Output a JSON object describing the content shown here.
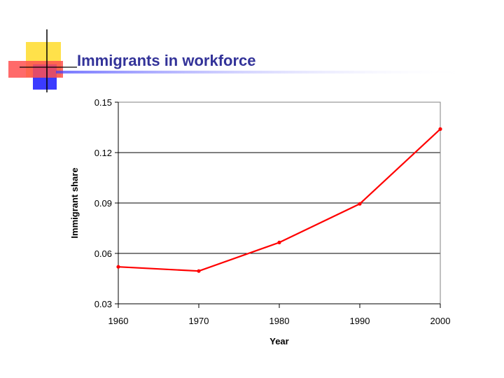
{
  "slide": {
    "title": "Immigrants in workforce",
    "colors": {
      "title": "#333399",
      "deco_yellow": "#FFE14A",
      "deco_red": "#FF3B3B",
      "deco_blue": "#3B3BFF",
      "deco_line": "#000000"
    }
  },
  "chart_data": {
    "type": "line",
    "title": "",
    "xlabel": "Year",
    "ylabel": "Immigrant share",
    "xlim": [
      1960,
      2000
    ],
    "ylim": [
      0.03,
      0.15
    ],
    "x_ticks": [
      "1960",
      "1970",
      "1980",
      "1990",
      "2000"
    ],
    "y_ticks": [
      "0.03",
      "0.06",
      "0.09",
      "0.12",
      "0.15"
    ],
    "grid": "horizontal",
    "legend": "none",
    "series": [
      {
        "color": "#FF0000",
        "x": [
          1960,
          1970,
          1980,
          1990,
          2000
        ],
        "values": [
          0.052,
          0.0495,
          0.0665,
          0.0895,
          0.134
        ]
      }
    ]
  }
}
